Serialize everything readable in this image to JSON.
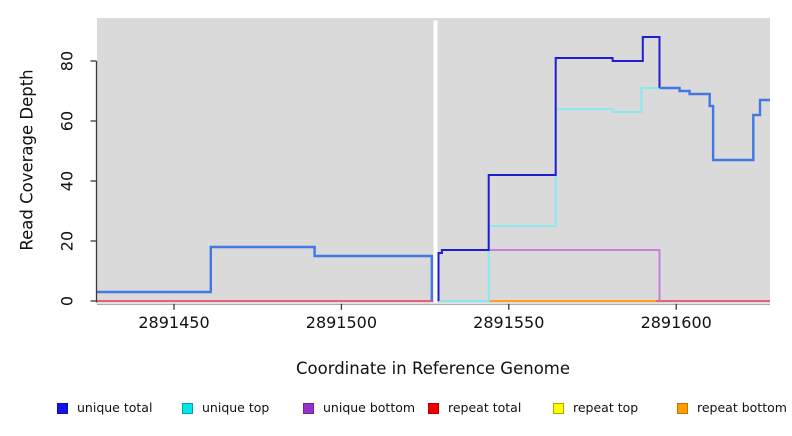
{
  "legend": {
    "items": [
      {
        "label": "unique total",
        "fill": "#1414e6",
        "border": "#0f0fb0"
      },
      {
        "label": "unique top",
        "fill": "#00e9e9",
        "border": "#009fb3"
      },
      {
        "label": "unique bottom",
        "fill": "#9932cc",
        "border": "#72249b"
      },
      {
        "label": "repeat total",
        "fill": "#f20000",
        "border": "#aa0000"
      },
      {
        "label": "repeat top",
        "fill": "#ffff00",
        "border": "#b0a600"
      },
      {
        "label": "repeat bottom",
        "fill": "#ff9d00",
        "border": "#c27300"
      }
    ]
  },
  "chart_data": {
    "type": "line",
    "subtype": "step",
    "title": "",
    "xlabel": "Coordinate in Reference Genome",
    "ylabel": "Read Coverage Depth",
    "xlim": [
      2891427,
      2891628
    ],
    "ylim": [
      0,
      94
    ],
    "x_ticks": [
      2891450,
      2891500,
      2891550,
      2891600
    ],
    "y_ticks": [
      0,
      20,
      40,
      60,
      80
    ],
    "grid": false,
    "legend_position": "bottom",
    "plot_background": "#dadada",
    "gap_band": {
      "x_from": 2891527.5,
      "x_to": 2891528.7,
      "color": "#ffffff"
    },
    "series": [
      {
        "name": "unique total",
        "color": "#1414e6",
        "steps": [
          [
            2891427,
            3
          ],
          [
            2891461,
            18
          ],
          [
            2891492,
            15
          ],
          [
            2891527,
            0
          ],
          [
            2891529,
            16
          ],
          [
            2891530,
            17
          ],
          [
            2891544,
            42
          ],
          [
            2891564,
            81
          ],
          [
            2891581,
            80
          ],
          [
            2891590,
            88
          ],
          [
            2891595,
            71
          ],
          [
            2891601,
            70
          ],
          [
            2891604,
            69
          ],
          [
            2891610,
            65
          ],
          [
            2891611,
            47
          ],
          [
            2891623,
            62
          ],
          [
            2891625,
            67
          ],
          [
            2891628,
            67
          ]
        ]
      },
      {
        "name": "unique top",
        "color": "#00e9e9",
        "steps": [
          [
            2891427,
            3
          ],
          [
            2891461,
            18
          ],
          [
            2891492,
            15
          ],
          [
            2891527,
            0
          ],
          [
            2891529,
            0
          ],
          [
            2891544,
            25
          ],
          [
            2891564,
            64
          ],
          [
            2891581,
            63
          ],
          [
            2891590,
            71
          ],
          [
            2891595,
            71
          ],
          [
            2891601,
            70
          ],
          [
            2891604,
            69
          ],
          [
            2891610,
            65
          ],
          [
            2891611,
            47
          ],
          [
            2891623,
            62
          ],
          [
            2891625,
            67
          ],
          [
            2891628,
            67
          ]
        ]
      },
      {
        "name": "unique bottom",
        "color": "#9932cc",
        "steps": [
          [
            2891427,
            0
          ],
          [
            2891529,
            16
          ],
          [
            2891530,
            17
          ],
          [
            2891595,
            0
          ],
          [
            2891628,
            0
          ]
        ]
      },
      {
        "name": "repeat total",
        "color": "#f20000",
        "steps": [
          [
            2891427,
            0
          ],
          [
            2891628,
            0
          ]
        ]
      },
      {
        "name": "repeat top",
        "color": "#ffff00",
        "steps": [
          [
            2891427,
            0
          ],
          [
            2891628,
            0
          ]
        ]
      },
      {
        "name": "repeat bottom",
        "color": "#ff9d00",
        "steps": [
          [
            2891427,
            0
          ],
          [
            2891628,
            0
          ]
        ]
      }
    ],
    "render_polylines": [
      {
        "name": "baseline-repeat-total",
        "color": "#e8607a",
        "width": 2,
        "points": [
          [
            2891427,
            0
          ],
          [
            2891628,
            0
          ]
        ]
      },
      {
        "name": "baseline-blend-green",
        "color": "#55b060",
        "width": 2,
        "points": [
          [
            2891529,
            0
          ],
          [
            2891544,
            0
          ]
        ]
      },
      {
        "name": "baseline-repeat-bottom",
        "color": "#ff9e24",
        "width": 2,
        "points": [
          [
            2891544,
            0
          ],
          [
            2891594,
            0
          ]
        ]
      },
      {
        "name": "unique-bottom-line",
        "color": "#c77fd9",
        "width": 2,
        "points": [
          [
            2891529,
            0
          ],
          [
            2891529,
            16
          ],
          [
            2891530,
            16
          ],
          [
            2891530,
            17
          ],
          [
            2891595,
            17
          ],
          [
            2891595,
            0
          ]
        ]
      },
      {
        "name": "unique-top-line-left",
        "color": "#8ae9ef",
        "width": 2,
        "points": [
          [
            2891427,
            3
          ],
          [
            2891461,
            3
          ],
          [
            2891461,
            18
          ],
          [
            2891492,
            18
          ],
          [
            2891492,
            15
          ],
          [
            2891527,
            15
          ],
          [
            2891527,
            0
          ]
        ]
      },
      {
        "name": "unique-top-line-right",
        "color": "#8ae9ef",
        "width": 2,
        "points": [
          [
            2891529,
            0
          ],
          [
            2891544,
            0
          ],
          [
            2891544,
            25
          ],
          [
            2891564,
            25
          ],
          [
            2891564,
            64
          ],
          [
            2891581,
            64
          ],
          [
            2891581,
            63
          ],
          [
            2891589.6,
            63
          ],
          [
            2891589.6,
            71
          ],
          [
            2891595,
            71
          ],
          [
            2891601,
            71
          ],
          [
            2891601,
            70
          ],
          [
            2891604,
            70
          ],
          [
            2891604,
            69
          ],
          [
            2891610,
            69
          ],
          [
            2891610,
            65
          ],
          [
            2891611,
            65
          ],
          [
            2891611,
            47
          ],
          [
            2891623,
            47
          ],
          [
            2891623,
            62
          ],
          [
            2891625,
            62
          ],
          [
            2891625,
            67
          ],
          [
            2891628,
            67
          ]
        ]
      },
      {
        "name": "unique-total-line-dark",
        "color": "#1f1fd1",
        "width": 2,
        "points": [
          [
            2891529,
            0
          ],
          [
            2891529,
            16
          ],
          [
            2891530,
            16
          ],
          [
            2891530,
            17
          ],
          [
            2891544,
            17
          ],
          [
            2891544,
            42
          ],
          [
            2891564,
            42
          ],
          [
            2891564,
            81
          ],
          [
            2891581,
            81
          ],
          [
            2891581,
            80
          ],
          [
            2891590,
            80
          ],
          [
            2891590,
            88
          ],
          [
            2891595,
            88
          ],
          [
            2891595,
            71
          ]
        ]
      },
      {
        "name": "unique-total-line-blend-left",
        "color": "#4377e3",
        "width": 2.4,
        "points": [
          [
            2891427,
            3
          ],
          [
            2891461,
            3
          ],
          [
            2891461,
            18
          ],
          [
            2891492,
            18
          ],
          [
            2891492,
            15
          ],
          [
            2891527,
            15
          ],
          [
            2891527,
            0
          ]
        ]
      },
      {
        "name": "unique-total-line-blend-right",
        "color": "#4377e3",
        "width": 2.4,
        "points": [
          [
            2891595,
            71
          ],
          [
            2891601,
            71
          ],
          [
            2891601,
            70
          ],
          [
            2891604,
            70
          ],
          [
            2891604,
            69
          ],
          [
            2891610,
            69
          ],
          [
            2891610,
            65
          ],
          [
            2891611,
            65
          ],
          [
            2891611,
            47
          ],
          [
            2891623,
            47
          ],
          [
            2891623,
            62
          ],
          [
            2891625,
            62
          ],
          [
            2891625,
            67
          ],
          [
            2891628,
            67
          ]
        ]
      }
    ]
  }
}
